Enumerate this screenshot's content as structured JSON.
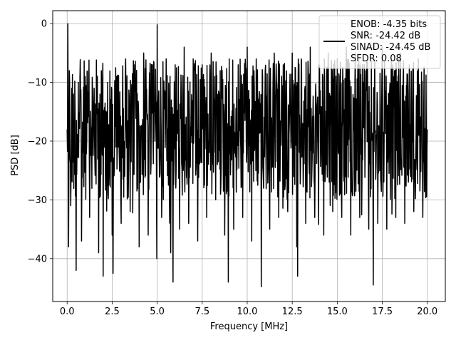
{
  "chart_data": {
    "type": "line",
    "title": "",
    "xlabel": "Frequency [MHz]",
    "ylabel": "PSD [dB]",
    "xlim": [
      -0.8,
      21.0
    ],
    "ylim": [
      -47.3,
      2.2
    ],
    "grid": true,
    "legend_position": "top-right",
    "x_ticks": [
      0.0,
      2.5,
      5.0,
      7.5,
      10.0,
      12.5,
      15.0,
      17.5,
      20.0
    ],
    "x_tick_labels": [
      "0.0",
      "2.5",
      "5.0",
      "7.5",
      "10.0",
      "12.5",
      "15.0",
      "17.5",
      "20.0"
    ],
    "y_ticks": [
      0,
      -10,
      -20,
      -30,
      -40
    ],
    "y_tick_labels": [
      "0",
      "−10",
      "−20",
      "−30",
      "−40"
    ],
    "legend_lines": [
      "ENOB: -4.35 bits",
      "SNR: -24.42 dB",
      "SINAD: -24.45 dB",
      "SFDR: 0.08"
    ],
    "series": [
      {
        "color": "#000000",
        "x": [
          0.0,
          0.04,
          0.08,
          0.12,
          0.2,
          0.35,
          0.5,
          0.62,
          0.8,
          1.0,
          1.25,
          1.5,
          1.75,
          1.9,
          2.0,
          2.25,
          2.5,
          2.55,
          2.75,
          3.0,
          3.25,
          3.5,
          3.75,
          4.0,
          4.25,
          4.5,
          4.75,
          4.98,
          5.0,
          5.25,
          5.5,
          5.75,
          5.88,
          6.0,
          6.25,
          6.5,
          6.75,
          7.0,
          7.25,
          7.5,
          7.75,
          8.0,
          8.25,
          8.5,
          8.75,
          8.95,
          9.0,
          9.25,
          9.5,
          9.75,
          10.0,
          10.25,
          10.5,
          10.78,
          11.0,
          11.25,
          11.5,
          11.75,
          12.0,
          12.25,
          12.5,
          12.75,
          12.8,
          13.0,
          13.25,
          13.5,
          13.75,
          14.0,
          14.25,
          14.5,
          14.75,
          15.0,
          15.25,
          15.5,
          15.75,
          16.0,
          16.25,
          16.5,
          16.75,
          17.0,
          17.08,
          17.25,
          17.5,
          17.75,
          18.0,
          18.25,
          18.5,
          18.75,
          19.0,
          19.25,
          19.5,
          19.75,
          20.0
        ],
        "y": [
          -18,
          0,
          -38,
          -8,
          -31,
          -12,
          -42,
          -10,
          -37,
          -9,
          -33,
          -11,
          -39,
          -8,
          -43,
          -10,
          -36,
          -42.5,
          -9,
          -34,
          -6,
          -32,
          -7,
          -38,
          -5,
          -36,
          -7,
          -40,
          -0.2,
          -33,
          -6,
          -39,
          -44,
          -7,
          -35,
          -4,
          -34,
          -6,
          -37,
          -7,
          -33,
          -5,
          -30,
          -8,
          -36,
          -44,
          -6,
          -35,
          -7,
          -33,
          -4,
          -37,
          -6,
          -44.8,
          -8,
          -35,
          -5,
          -33,
          -7,
          -32,
          -5,
          -38,
          -43,
          -6,
          -34,
          -4,
          -33,
          -7,
          -36,
          -5,
          -32,
          -6,
          -33,
          -4,
          -36,
          -5,
          -33,
          -7,
          -35,
          -44.5,
          -6,
          -34,
          -4,
          -35,
          -6,
          -33,
          -5,
          -34,
          -7,
          -32,
          -6,
          -33,
          -18
        ]
      }
    ]
  }
}
